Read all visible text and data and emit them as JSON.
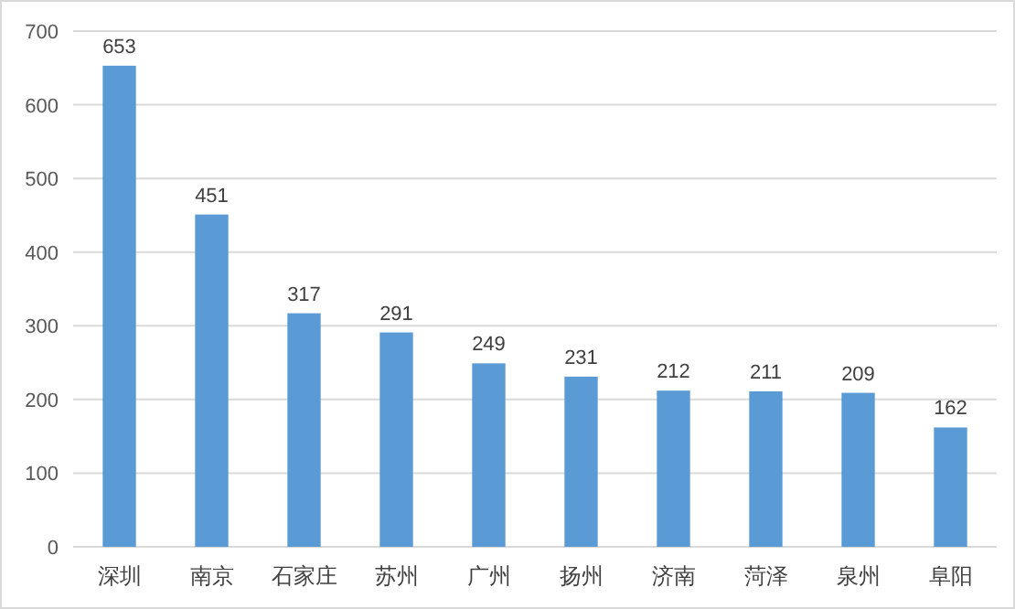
{
  "chart_data": {
    "type": "bar",
    "categories": [
      "深圳",
      "南京",
      "石家庄",
      "苏州",
      "广州",
      "扬州",
      "济南",
      "菏泽",
      "泉州",
      "阜阳"
    ],
    "values": [
      653,
      451,
      317,
      291,
      249,
      231,
      212,
      211,
      209,
      162
    ],
    "color": "#5b9bd5",
    "ylim": [
      0,
      700
    ],
    "yticks": [
      0,
      100,
      200,
      300,
      400,
      500,
      600,
      700
    ],
    "grid": "y",
    "data_labels": true
  }
}
